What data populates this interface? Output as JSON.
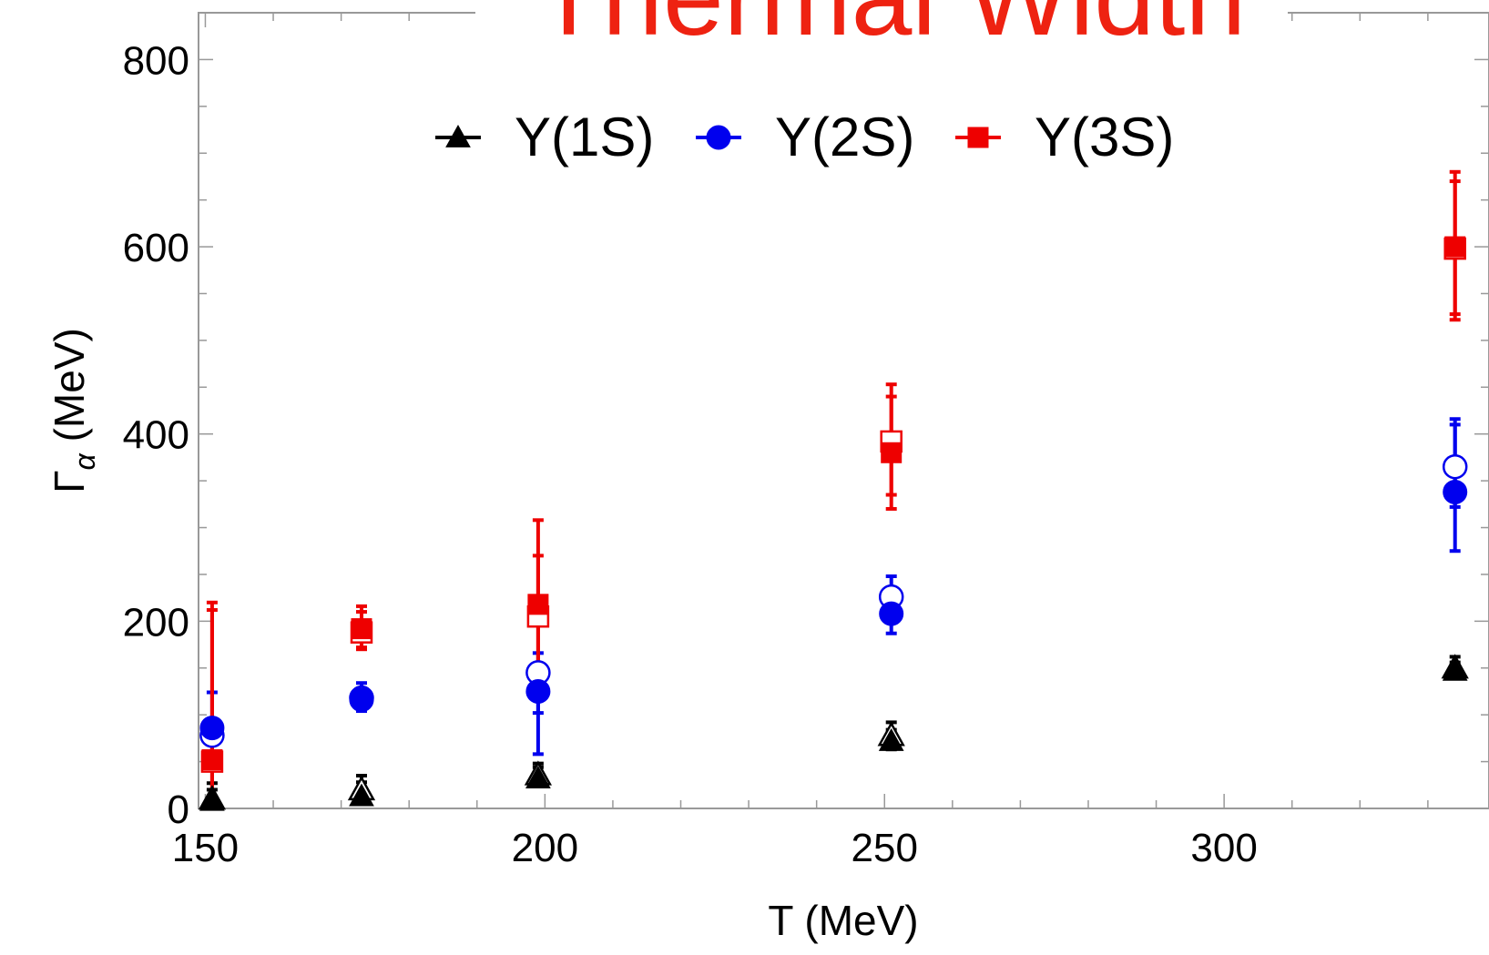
{
  "chart_data": {
    "type": "scatter",
    "title": "Thermal Width",
    "xlabel": "T (MeV)",
    "ylabel_main": "Γ",
    "ylabel_sub": "α",
    "ylabel_unit": " (MeV)",
    "xlim": [
      149,
      339
    ],
    "ylim": [
      0,
      850
    ],
    "xticks": [
      150,
      200,
      250,
      300
    ],
    "yticks": [
      0,
      200,
      400,
      600,
      800
    ],
    "xticks_minor_step": 10,
    "yticks_minor_step": 50,
    "legend_position": "top-center",
    "grid": false,
    "colors": {
      "title": "#ee2211",
      "frame": "#999999",
      "ups1s": "#000000",
      "ups2s": "#0000ee",
      "ups3s": "#ee0000"
    },
    "series": [
      {
        "name": "Υ(1S)",
        "marker": "triangle",
        "color": "#000000",
        "filled": [
          {
            "x": 151,
            "y": 8,
            "lo": 0,
            "hi": 20
          },
          {
            "x": 173,
            "y": 13,
            "lo": 5,
            "hi": 28
          },
          {
            "x": 199,
            "y": 32,
            "lo": 25,
            "hi": 44
          },
          {
            "x": 251,
            "y": 72,
            "lo": 63,
            "hi": 84
          },
          {
            "x": 334,
            "y": 147,
            "lo": 140,
            "hi": 156
          }
        ],
        "open": [
          {
            "x": 151,
            "y": 10,
            "lo": 0,
            "hi": 27
          },
          {
            "x": 173,
            "y": 20,
            "lo": 8,
            "hi": 35
          },
          {
            "x": 199,
            "y": 36,
            "lo": 28,
            "hi": 48
          },
          {
            "x": 251,
            "y": 78,
            "lo": 67,
            "hi": 92
          },
          {
            "x": 334,
            "y": 150,
            "lo": 142,
            "hi": 162
          }
        ]
      },
      {
        "name": "Υ(2S)",
        "marker": "circle",
        "color": "#0000ee",
        "filled": [
          {
            "x": 151,
            "y": 86,
            "lo": 44,
            "hi": 124
          },
          {
            "x": 173,
            "y": 116,
            "lo": 104,
            "hi": 128
          },
          {
            "x": 199,
            "y": 125,
            "lo": 58,
            "hi": 145
          },
          {
            "x": 251,
            "y": 208,
            "lo": 187,
            "hi": 230
          },
          {
            "x": 334,
            "y": 338,
            "lo": 275,
            "hi": 410
          }
        ],
        "open": [
          {
            "x": 151,
            "y": 78,
            "lo": 52,
            "hi": 95
          },
          {
            "x": 173,
            "y": 118,
            "lo": 108,
            "hi": 134
          },
          {
            "x": 199,
            "y": 145,
            "lo": 102,
            "hi": 166
          },
          {
            "x": 251,
            "y": 226,
            "lo": 205,
            "hi": 248
          },
          {
            "x": 334,
            "y": 365,
            "lo": 322,
            "hi": 416
          }
        ]
      },
      {
        "name": "Υ(3S)",
        "marker": "square",
        "color": "#ee0000",
        "filled": [
          {
            "x": 151,
            "y": 52,
            "lo": 0,
            "hi": 212
          },
          {
            "x": 173,
            "y": 192,
            "lo": 172,
            "hi": 210
          },
          {
            "x": 199,
            "y": 218,
            "lo": 140,
            "hi": 308
          },
          {
            "x": 251,
            "y": 380,
            "lo": 320,
            "hi": 440
          },
          {
            "x": 334,
            "y": 600,
            "lo": 522,
            "hi": 680
          }
        ],
        "open": [
          {
            "x": 151,
            "y": 50,
            "lo": 0,
            "hi": 220
          },
          {
            "x": 173,
            "y": 188,
            "lo": 170,
            "hi": 216
          },
          {
            "x": 199,
            "y": 205,
            "lo": 148,
            "hi": 270
          },
          {
            "x": 251,
            "y": 392,
            "lo": 335,
            "hi": 453
          },
          {
            "x": 334,
            "y": 598,
            "lo": 528,
            "hi": 670
          }
        ]
      }
    ]
  }
}
